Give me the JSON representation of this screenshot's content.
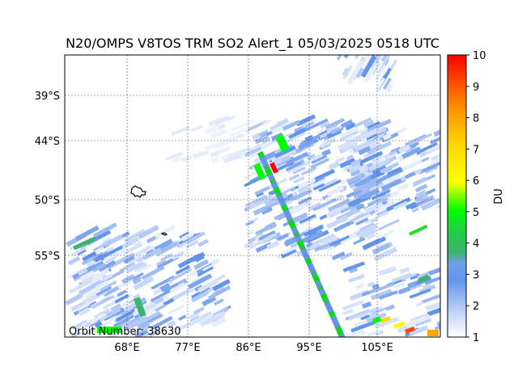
{
  "title": "N20/OMPS V8TOS TRM SO2 Alert_1 05/03/2025 0518 UTC",
  "orbit_label": "Orbit Number: 38630",
  "colorbar": {
    "label": "DU",
    "min": 1,
    "max": 10,
    "ticks": [
      "1",
      "2",
      "3",
      "4",
      "5",
      "6",
      "7",
      "8",
      "9",
      "10"
    ],
    "colors": [
      "#ffffff",
      "#c8d8f8",
      "#6495ed",
      "#3cb371",
      "#00ff00",
      "#adff2f",
      "#ffff00",
      "#ffd700",
      "#ff8c00",
      "#ff0000"
    ]
  },
  "map": {
    "lat_ticks": [
      "39°S",
      "44°S",
      "50°S",
      "55°S"
    ],
    "lon_ticks": [
      "68°E",
      "77°E",
      "86°E",
      "95°E",
      "105°E"
    ],
    "grid": true
  },
  "chart_data": {
    "type": "heatmap",
    "title": "N20/OMPS V8TOS TRM SO2 Alert_1 05/03/2025 0518 UTC",
    "xlabel": "",
    "ylabel": "",
    "colorbar_label": "DU",
    "colorbar_range": [
      1,
      10
    ],
    "x_ticks": [
      "68°E",
      "77°E",
      "86°E",
      "95°E",
      "105°E"
    ],
    "y_ticks": [
      "39°S",
      "44°S",
      "50°S",
      "55°S"
    ]
  }
}
